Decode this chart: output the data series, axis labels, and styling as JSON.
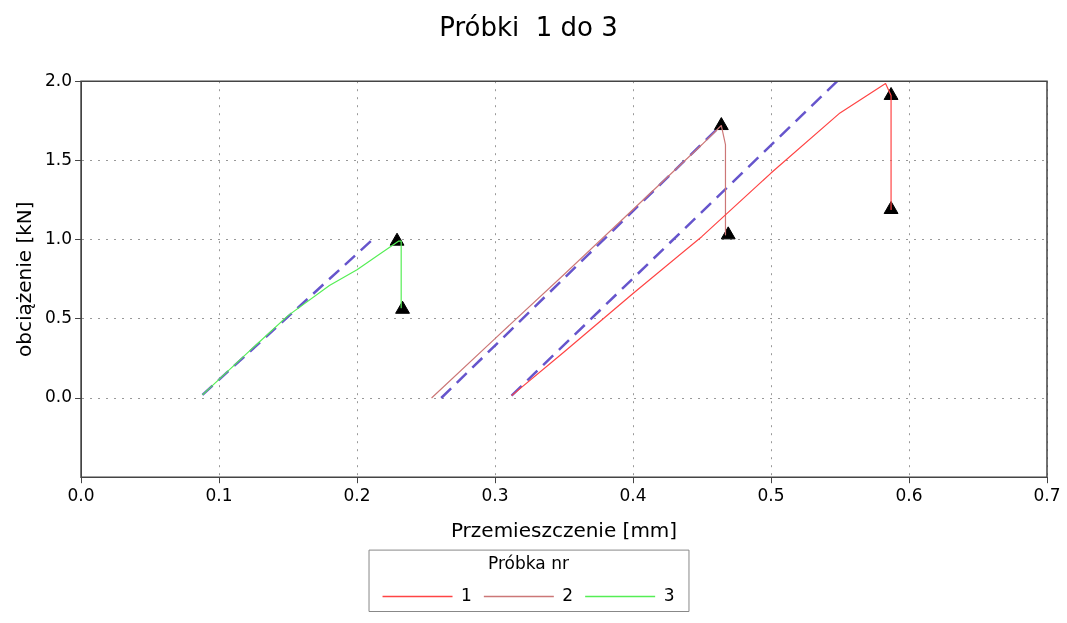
{
  "chart_data": {
    "type": "line",
    "title": "Próbki  1 do 3",
    "xlabel": "Przemieszczenie [mm]",
    "ylabel": "obciążenie [kN]",
    "legend_title": "Próbka nr",
    "legend": "bottom",
    "grid": true,
    "marker": "none",
    "xlim": [
      0,
      0.7
    ],
    "xticks": [
      {
        "value": 0,
        "label": "0.0"
      },
      {
        "value": 0.1,
        "label": "0.1"
      },
      {
        "value": 0.2,
        "label": "0.2"
      },
      {
        "value": 0.3,
        "label": "0.3"
      },
      {
        "value": 0.4,
        "label": "0.4"
      },
      {
        "value": 0.5,
        "label": "0.5"
      },
      {
        "value": 0.6,
        "label": "0.6"
      },
      {
        "value": 0.7,
        "label": "0.7"
      }
    ],
    "ylim": [
      -0.5,
      2.0
    ],
    "yticks": [
      {
        "value": 0,
        "label": "0.0"
      },
      {
        "value": 0.5,
        "label": "0.5"
      },
      {
        "value": 1,
        "label": "1.0"
      },
      {
        "value": 1.5,
        "label": "1.5"
      },
      {
        "value": 2,
        "label": "2.0"
      }
    ],
    "series": [
      {
        "name": "1",
        "color": "#ff4444",
        "x": [
          0.312,
          0.35,
          0.4,
          0.45,
          0.5,
          0.55,
          0.583,
          0.587,
          0.587
        ],
        "values": [
          0.015,
          0.29,
          0.66,
          1.02,
          1.42,
          1.8,
          1.985,
          1.91,
          1.19
        ]
      },
      {
        "name": "2",
        "color": "#cc7777",
        "x": [
          0.254,
          0.3,
          0.35,
          0.4,
          0.45,
          0.464,
          0.467,
          0.467
        ],
        "values": [
          0,
          0.375,
          0.78,
          1.19,
          1.6,
          1.72,
          1.6,
          1.03
        ]
      },
      {
        "name": "3",
        "color": "#55ee55",
        "x": [
          0.088,
          0.12,
          0.15,
          0.18,
          0.2,
          0.23,
          0.232,
          0.232
        ],
        "values": [
          0.02,
          0.28,
          0.52,
          0.71,
          0.81,
          0.99,
          0.99,
          0.57
        ]
      },
      {
        "type": "line",
        "line_style": "dashed",
        "color": "#6655cc",
        "x": [
          0.088,
          0.21
        ],
        "values": [
          0.02,
          0.99
        ]
      },
      {
        "type": "line",
        "line_style": "dashed",
        "color": "#6655cc",
        "x": [
          0.261,
          0.46
        ],
        "values": [
          0,
          1.69
        ]
      },
      {
        "type": "line",
        "line_style": "dashed",
        "color": "#6655cc",
        "x": [
          0.312,
          0.548
        ],
        "values": [
          0.015,
          2.0
        ]
      },
      {
        "type": "scatter",
        "marker": "triangle",
        "color": "#000000",
        "x": [
          0.229,
          0.233,
          0.464,
          0.469,
          0.587,
          0.587
        ],
        "values": [
          0.99,
          0.56,
          1.72,
          1.03,
          1.91,
          1.19
        ]
      }
    ]
  }
}
